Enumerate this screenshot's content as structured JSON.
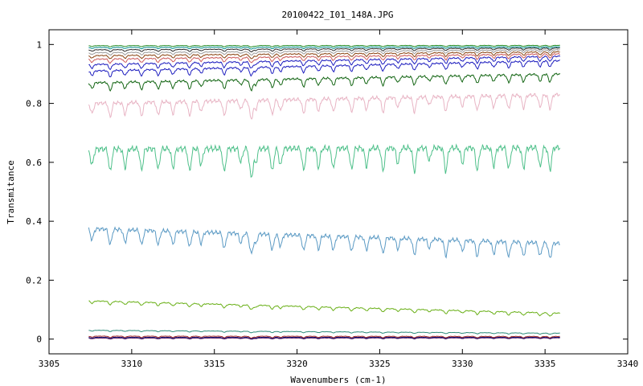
{
  "chart_data": {
    "type": "line",
    "title": "20100422_I01_148A.JPG",
    "xlabel": "Wavenumbers (cm-1)",
    "ylabel": "Transmitance",
    "xlim": [
      3305,
      3340
    ],
    "ylim": [
      -0.05,
      1.05
    ],
    "x_range": [
      3307.4,
      3335.9
    ],
    "xticks": [
      "3305",
      "3310",
      "3315",
      "3320",
      "3325",
      "3330",
      "3335",
      "3340"
    ],
    "yticks": [
      "0",
      "0.2",
      "0.4",
      "0.6",
      "0.8",
      "1"
    ],
    "xtick_values": [
      3305,
      3310,
      3315,
      3320,
      3325,
      3330,
      3335,
      3340
    ],
    "ytick_values": [
      0,
      0.2,
      0.4,
      0.6,
      0.8,
      1.0
    ],
    "absorption_lines": [
      3307.6,
      3308.7,
      3309.6,
      3310.6,
      3311.6,
      3312.5,
      3313.5,
      3314.2,
      3315.6,
      3316.6,
      3317.2,
      3317.5,
      3318.5,
      3319.0,
      3320.4,
      3321.3,
      3322.2,
      3323.3,
      3324.2,
      3325.2,
      3326.1,
      3327.1,
      3328.0,
      3329.0,
      3330.0,
      3330.9,
      3331.9,
      3332.8,
      3333.7,
      3334.7,
      3335.3
    ],
    "series": [
      {
        "color": "#6c2b6c",
        "start": 0.003,
        "end": 0.004,
        "depth": 0.003
      },
      {
        "color": "#0b0b6e",
        "start": 0.006,
        "end": 0.006,
        "depth": 0.004
      },
      {
        "color": "#a52a2a",
        "start": 0.01,
        "end": 0.009,
        "depth": 0.005
      },
      {
        "color": "#2e8b7a",
        "start": 0.03,
        "end": 0.02,
        "depth": 0.004
      },
      {
        "color": "#6ab018",
        "start": 0.13,
        "end": 0.088,
        "depth": 0.012
      },
      {
        "color": "#5b9ac4",
        "start": 0.375,
        "end": 0.325,
        "depth": 0.055
      },
      {
        "color": "#4ec08a",
        "start": 0.645,
        "end": 0.65,
        "depth": 0.08
      },
      {
        "color": "#e8b4c4",
        "start": 0.8,
        "end": 0.83,
        "depth": 0.05
      },
      {
        "color": "#146614",
        "start": 0.87,
        "end": 0.9,
        "depth": 0.028
      },
      {
        "color": "#1f1fbf",
        "start": 0.91,
        "end": 0.945,
        "depth": 0.022
      },
      {
        "color": "#1f1fbf",
        "start": 0.932,
        "end": 0.96,
        "depth": 0.018
      },
      {
        "color": "#cd5c5c",
        "start": 0.95,
        "end": 0.968,
        "depth": 0.015
      },
      {
        "color": "#8b4513",
        "start": 0.962,
        "end": 0.975,
        "depth": 0.012
      },
      {
        "color": "#9a9a9a",
        "start": 0.972,
        "end": 0.982,
        "depth": 0.009
      },
      {
        "color": "#2a2a2a",
        "start": 0.982,
        "end": 0.988,
        "depth": 0.007
      },
      {
        "color": "#008b8b",
        "start": 0.99,
        "end": 0.992,
        "depth": 0.005
      },
      {
        "color": "#228b22",
        "start": 0.996,
        "end": 0.997,
        "depth": 0.004
      }
    ]
  }
}
